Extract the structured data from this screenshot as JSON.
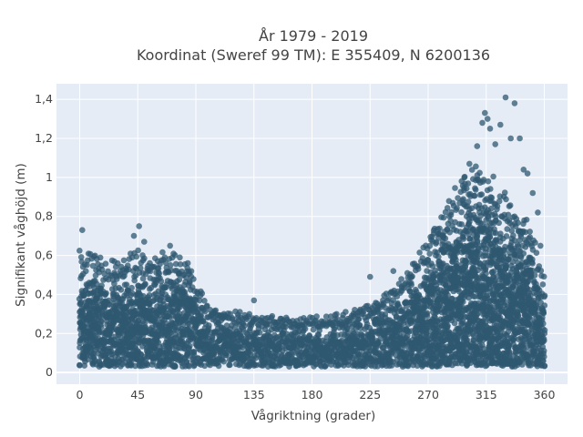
{
  "chart_data": {
    "type": "scatter",
    "title": [
      "År 1979 - 2019",
      "Koordinat (Sweref 99 TM): E 355409, N 6200136"
    ],
    "xlabel": "Vågriktning (grader)",
    "ylabel": "Signifikant våghöjd (m)",
    "xlim": [
      -18,
      378
    ],
    "ylim": [
      -0.06,
      1.48
    ],
    "xticks": [
      0,
      45,
      90,
      135,
      180,
      225,
      270,
      315,
      360
    ],
    "xtick_labels": [
      "0",
      "45",
      "90",
      "135",
      "180",
      "225",
      "270",
      "315",
      "360"
    ],
    "yticks": [
      0,
      0.2,
      0.4,
      0.6,
      0.8,
      1.0,
      1.2,
      1.4
    ],
    "ytick_labels": [
      "0",
      "0,2",
      "0,4",
      "0,6",
      "0,8",
      "1",
      "1,2",
      "1,4"
    ],
    "grid": true,
    "marker_color": "#2f5870",
    "marker_opacity": 0.75,
    "background": "#e5ecf6",
    "envelope_x": [
      0,
      10,
      20,
      30,
      45,
      55,
      65,
      75,
      85,
      90,
      100,
      120,
      140,
      160,
      180,
      200,
      220,
      240,
      255,
      265,
      275,
      285,
      295,
      305,
      315,
      325,
      335,
      345,
      355,
      360
    ],
    "envelope_max": [
      0.6,
      0.58,
      0.55,
      0.56,
      0.6,
      0.55,
      0.6,
      0.58,
      0.55,
      0.45,
      0.32,
      0.3,
      0.28,
      0.27,
      0.27,
      0.29,
      0.32,
      0.4,
      0.5,
      0.6,
      0.75,
      0.85,
      0.95,
      1.05,
      1.0,
      0.95,
      0.85,
      0.8,
      0.6,
      0.5
    ],
    "outliers": [
      {
        "x": 2,
        "y": 0.73
      },
      {
        "x": 42,
        "y": 0.7
      },
      {
        "x": 46,
        "y": 0.75
      },
      {
        "x": 50,
        "y": 0.67
      },
      {
        "x": 70,
        "y": 0.65
      },
      {
        "x": 135,
        "y": 0.37
      },
      {
        "x": 225,
        "y": 0.49
      },
      {
        "x": 243,
        "y": 0.52
      },
      {
        "x": 302,
        "y": 1.07
      },
      {
        "x": 308,
        "y": 1.16
      },
      {
        "x": 312,
        "y": 1.28
      },
      {
        "x": 314,
        "y": 1.33
      },
      {
        "x": 316,
        "y": 1.3
      },
      {
        "x": 318,
        "y": 1.25
      },
      {
        "x": 322,
        "y": 1.17
      },
      {
        "x": 326,
        "y": 1.27
      },
      {
        "x": 330,
        "y": 1.41
      },
      {
        "x": 334,
        "y": 1.2
      },
      {
        "x": 337,
        "y": 1.38
      },
      {
        "x": 341,
        "y": 1.2
      },
      {
        "x": 344,
        "y": 1.04
      },
      {
        "x": 347,
        "y": 1.02
      },
      {
        "x": 351,
        "y": 0.92
      },
      {
        "x": 355,
        "y": 0.82
      },
      {
        "x": 357,
        "y": 0.65
      },
      {
        "x": 298,
        "y": 1.0
      }
    ]
  }
}
